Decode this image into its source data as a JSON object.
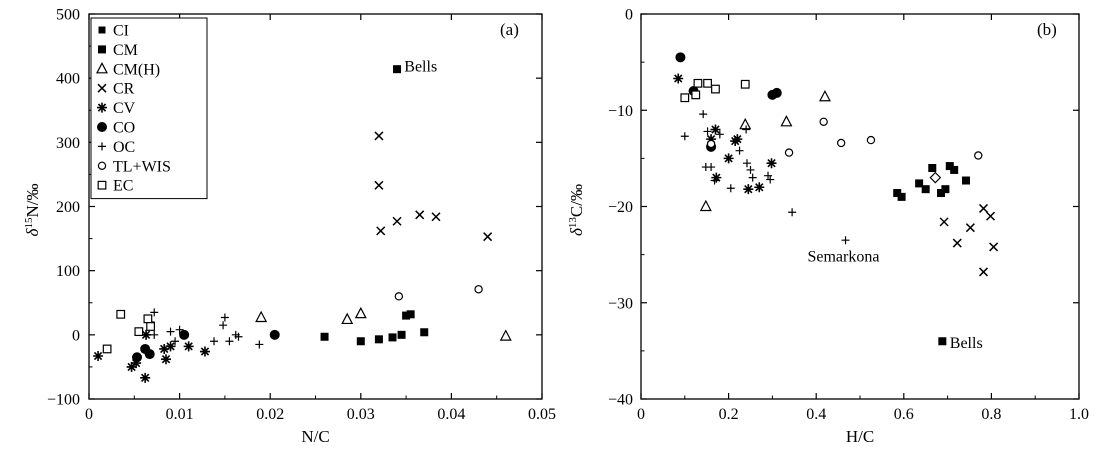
{
  "chart_data": [
    {
      "type": "scatter",
      "panel_label": "(a)",
      "xlabel": "N/C",
      "ylabel": "δ15N/‰",
      "xlim": [
        0,
        0.05
      ],
      "ylim": [
        -100,
        500
      ],
      "xticks": [
        0,
        0.01,
        0.02,
        0.03,
        0.04,
        0.05
      ],
      "xtick_labels": [
        "0",
        "0.01",
        "0.02",
        "0.03",
        "0.04",
        "0.05"
      ],
      "yticks": [
        -100,
        0,
        100,
        200,
        300,
        400,
        500
      ],
      "ytick_labels": [
        "−100",
        "0",
        "100",
        "200",
        "300",
        "400",
        "500"
      ],
      "grid": false,
      "legend_position": "top-left",
      "legend": [
        {
          "name": "CI",
          "marker": "square-filled-small"
        },
        {
          "name": "CM",
          "marker": "square-filled"
        },
        {
          "name": "CM(H)",
          "marker": "triangle-open"
        },
        {
          "name": "CR",
          "marker": "x"
        },
        {
          "name": "CV",
          "marker": "asterisk"
        },
        {
          "name": "CO",
          "marker": "circle-filled"
        },
        {
          "name": "OC",
          "marker": "plus"
        },
        {
          "name": "TL+WIS",
          "marker": "circle-open"
        },
        {
          "name": "EC",
          "marker": "square-open"
        }
      ],
      "annotations": [
        {
          "text": "Bells",
          "x": 0.0348,
          "y": 418
        }
      ],
      "series": [
        {
          "name": "CM",
          "marker": "square-filled",
          "points": [
            [
              0.034,
              414
            ],
            [
              0.026,
              -3
            ],
            [
              0.03,
              -10
            ],
            [
              0.032,
              -7
            ],
            [
              0.0335,
              -4
            ],
            [
              0.0345,
              0
            ],
            [
              0.035,
              30
            ],
            [
              0.0355,
              32
            ],
            [
              0.037,
              4
            ]
          ]
        },
        {
          "name": "CM(H)",
          "marker": "triangle-open",
          "points": [
            [
              0.019,
              27
            ],
            [
              0.0285,
              24
            ],
            [
              0.03,
              33
            ],
            [
              0.046,
              -2
            ]
          ]
        },
        {
          "name": "CR",
          "marker": "x",
          "points": [
            [
              0.032,
              310
            ],
            [
              0.032,
              233
            ],
            [
              0.0322,
              162
            ],
            [
              0.034,
              177
            ],
            [
              0.0365,
              187
            ],
            [
              0.0383,
              184
            ],
            [
              0.044,
              153
            ]
          ]
        },
        {
          "name": "CV",
          "marker": "asterisk",
          "points": [
            [
              0.001,
              -33
            ],
            [
              0.0047,
              -50
            ],
            [
              0.0052,
              -44
            ],
            [
              0.0062,
              -67
            ],
            [
              0.0083,
              -22
            ],
            [
              0.0085,
              -38
            ],
            [
              0.009,
              -18
            ],
            [
              0.011,
              -18
            ],
            [
              0.0128,
              -26
            ],
            [
              0.0063,
              0
            ]
          ]
        },
        {
          "name": "CO",
          "marker": "circle-filled",
          "points": [
            [
              0.0053,
              -35
            ],
            [
              0.0062,
              -22
            ],
            [
              0.0067,
              -30
            ],
            [
              0.0105,
              0
            ],
            [
              0.0205,
              0
            ]
          ]
        },
        {
          "name": "OC",
          "marker": "plus",
          "points": [
            [
              0.0068,
              20
            ],
            [
              0.0072,
              35
            ],
            [
              0.0072,
              0
            ],
            [
              0.009,
              5
            ],
            [
              0.0095,
              -10
            ],
            [
              0.01,
              8
            ],
            [
              0.0138,
              -10
            ],
            [
              0.0148,
              15
            ],
            [
              0.015,
              27
            ],
            [
              0.0155,
              -10
            ],
            [
              0.0162,
              0
            ],
            [
              0.0165,
              -3
            ],
            [
              0.0188,
              -15
            ]
          ]
        },
        {
          "name": "TL+WIS",
          "marker": "circle-open",
          "points": [
            [
              0.0342,
              60
            ],
            [
              0.043,
              71
            ]
          ]
        },
        {
          "name": "EC",
          "marker": "square-open",
          "points": [
            [
              0.002,
              -22
            ],
            [
              0.0035,
              32
            ],
            [
              0.0055,
              5
            ],
            [
              0.0065,
              25
            ],
            [
              0.0068,
              13
            ]
          ]
        }
      ]
    },
    {
      "type": "scatter",
      "panel_label": "(b)",
      "xlabel": "H/C",
      "ylabel": "δ13C/‰",
      "xlim": [
        0,
        1.0
      ],
      "ylim": [
        -40,
        0
      ],
      "xticks": [
        0,
        0.2,
        0.4,
        0.6,
        0.8,
        1.0
      ],
      "xtick_labels": [
        "0",
        "0.2",
        "0.4",
        "0.6",
        "0.8",
        "1.0"
      ],
      "yticks": [
        -40,
        -30,
        -20,
        -10,
        0
      ],
      "ytick_labels": [
        "−40",
        "−30",
        "−20",
        "−10",
        "0"
      ],
      "grid": false,
      "annotations": [
        {
          "text": "Semarkona",
          "x": 0.38,
          "y": -25.2
        },
        {
          "text": "Bells",
          "x": 0.705,
          "y": -34.2
        }
      ],
      "series": [
        {
          "name": "CM",
          "marker": "square-filled",
          "points": [
            [
              0.585,
              -18.6
            ],
            [
              0.595,
              -19.0
            ],
            [
              0.635,
              -17.6
            ],
            [
              0.65,
              -18.2
            ],
            [
              0.665,
              -16.0
            ],
            [
              0.685,
              -18.6
            ],
            [
              0.695,
              -18.2
            ],
            [
              0.705,
              -15.8
            ],
            [
              0.715,
              -16.2
            ],
            [
              0.742,
              -17.3
            ],
            [
              0.688,
              -34.0
            ]
          ]
        },
        {
          "name": "CM(H)",
          "marker": "triangle-open",
          "points": [
            [
              0.148,
              -20.0
            ],
            [
              0.238,
              -11.5
            ],
            [
              0.332,
              -11.2
            ],
            [
              0.42,
              -8.6
            ]
          ]
        },
        {
          "name": "CR",
          "marker": "x",
          "points": [
            [
              0.692,
              -21.6
            ],
            [
              0.722,
              -23.8
            ],
            [
              0.752,
              -22.2
            ],
            [
              0.782,
              -20.2
            ],
            [
              0.798,
              -21.0
            ],
            [
              0.782,
              -26.8
            ],
            [
              0.805,
              -24.2
            ]
          ]
        },
        {
          "name": "CV",
          "marker": "asterisk",
          "points": [
            [
              0.085,
              -6.7
            ],
            [
              0.16,
              -13.0
            ],
            [
              0.17,
              -12.0
            ],
            [
              0.172,
              -17.0
            ],
            [
              0.2,
              -15.0
            ],
            [
              0.215,
              -13.2
            ],
            [
              0.22,
              -13.0
            ],
            [
              0.245,
              -18.2
            ],
            [
              0.27,
              -18.0
            ],
            [
              0.298,
              -15.5
            ]
          ]
        },
        {
          "name": "CO",
          "marker": "circle-filled",
          "points": [
            [
              0.09,
              -4.5
            ],
            [
              0.12,
              -8.0
            ],
            [
              0.16,
              -13.8
            ],
            [
              0.3,
              -8.4
            ],
            [
              0.31,
              -8.2
            ]
          ]
        },
        {
          "name": "OC",
          "marker": "plus",
          "points": [
            [
              0.1,
              -12.7
            ],
            [
              0.142,
              -10.4
            ],
            [
              0.148,
              -15.9
            ],
            [
              0.152,
              -12.2
            ],
            [
              0.16,
              -15.9
            ],
            [
              0.168,
              -17.3
            ],
            [
              0.18,
              -12.5
            ],
            [
              0.205,
              -18.1
            ],
            [
              0.225,
              -14.2
            ],
            [
              0.24,
              -12.0
            ],
            [
              0.242,
              -15.5
            ],
            [
              0.25,
              -16.2
            ],
            [
              0.255,
              -17.0
            ],
            [
              0.29,
              -16.8
            ],
            [
              0.295,
              -17.2
            ],
            [
              0.345,
              -20.6
            ],
            [
              0.467,
              -23.5
            ]
          ]
        },
        {
          "name": "TL+WIS",
          "marker": "circle-open",
          "points": [
            [
              0.16,
              -13.5
            ],
            [
              0.338,
              -14.4
            ],
            [
              0.417,
              -11.2
            ],
            [
              0.457,
              -13.4
            ],
            [
              0.525,
              -13.1
            ],
            [
              0.77,
              -14.7
            ]
          ]
        },
        {
          "name": "EC",
          "marker": "square-open",
          "points": [
            [
              0.1,
              -8.7
            ],
            [
              0.125,
              -8.4
            ],
            [
              0.13,
              -7.2
            ],
            [
              0.152,
              -7.2
            ],
            [
              0.17,
              -7.8
            ],
            [
              0.238,
              -7.3
            ]
          ]
        },
        {
          "name": "unlabeled-diamond",
          "marker": "diamond-open",
          "points": [
            [
              0.672,
              -17.0
            ]
          ]
        }
      ]
    }
  ]
}
